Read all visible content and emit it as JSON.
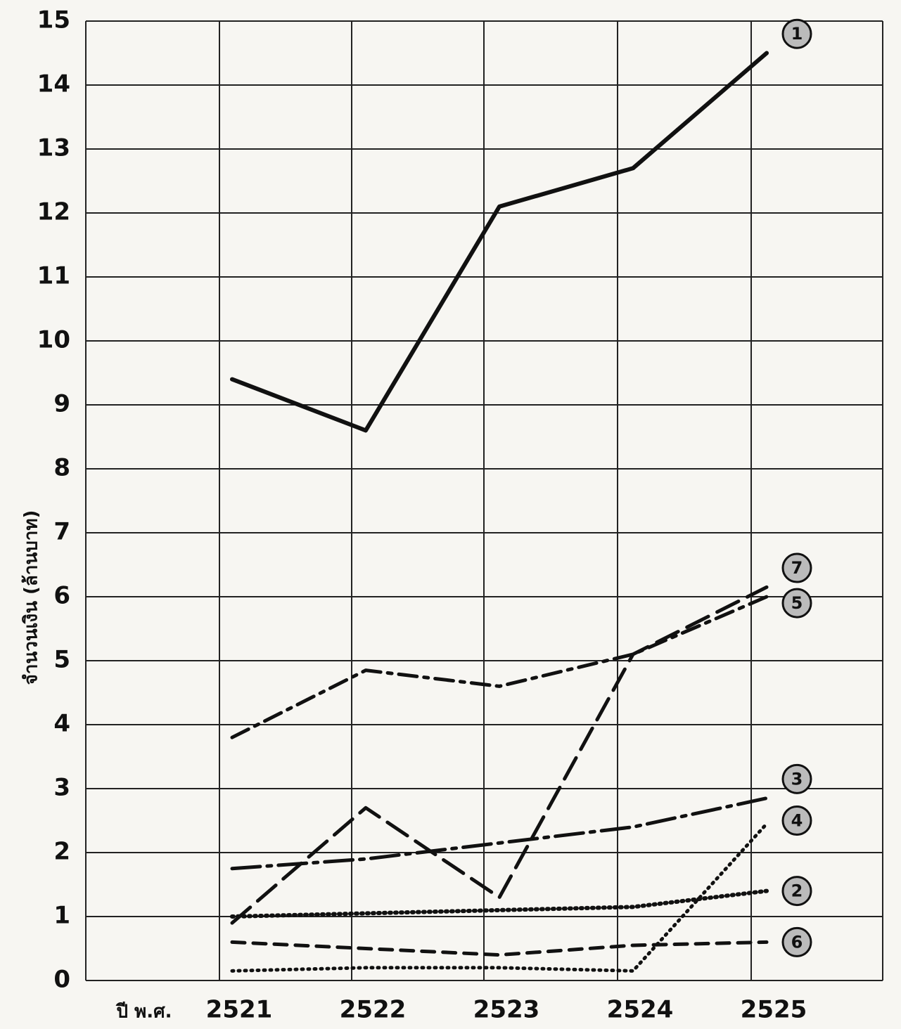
{
  "chart_data": {
    "type": "line",
    "y_label": "จำนวนเงิน (ล้านบาท)",
    "x_label": "ปี พ.ศ.",
    "categories": [
      "2521",
      "2522",
      "2523",
      "2524",
      "2525"
    ],
    "series": [
      {
        "name": "1",
        "color": "#111111",
        "dash": "solid",
        "values": [
          9.4,
          8.6,
          12.1,
          12.7,
          14.5
        ]
      },
      {
        "name": "2",
        "color": "#111111",
        "dash": "dotted-heavy",
        "values": [
          1.0,
          1.05,
          1.1,
          1.15,
          1.4
        ]
      },
      {
        "name": "3",
        "color": "#111111",
        "dash": "dash-dot-long",
        "values": [
          1.75,
          1.9,
          2.15,
          2.4,
          2.85
        ]
      },
      {
        "name": "4",
        "color": "#111111",
        "dash": "dotted",
        "values": [
          0.15,
          0.2,
          0.2,
          0.15,
          2.45
        ]
      },
      {
        "name": "5",
        "color": "#111111",
        "dash": "dash-dot",
        "values": [
          3.8,
          4.85,
          4.6,
          5.1,
          6.0
        ]
      },
      {
        "name": "6",
        "color": "#111111",
        "dash": "short-dash",
        "values": [
          0.6,
          0.5,
          0.4,
          0.55,
          0.6
        ]
      },
      {
        "name": "7",
        "color": "#111111",
        "dash": "long-dash",
        "values": [
          0.9,
          2.7,
          1.3,
          5.1,
          6.15
        ]
      }
    ],
    "ylim": [
      0,
      15
    ],
    "yticks": [
      0,
      1,
      2,
      3,
      4,
      5,
      6,
      7,
      8,
      9,
      10,
      11,
      12,
      13,
      14,
      15
    ],
    "grid": true
  }
}
